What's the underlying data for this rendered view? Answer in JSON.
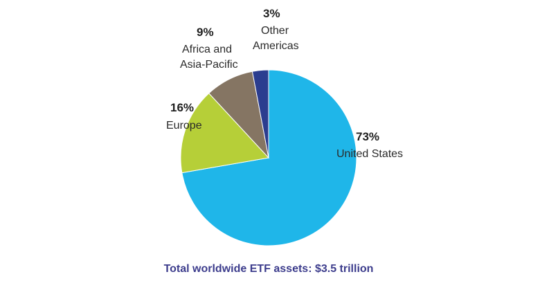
{
  "chart_data": {
    "type": "pie",
    "slices": [
      {
        "label": "United States",
        "label_lines": [
          "United States"
        ],
        "value": 73,
        "value_text": "73%",
        "color": "#1fb6e9"
      },
      {
        "label": "Europe",
        "label_lines": [
          "Europe"
        ],
        "value": 16,
        "value_text": "16%",
        "color": "#b6cf38"
      },
      {
        "label": "Africa and Asia-Pacific",
        "label_lines": [
          "Africa and",
          "Asia-Pacific"
        ],
        "value": 9,
        "value_text": "9%",
        "color": "#857563"
      },
      {
        "label": "Other Americas",
        "label_lines": [
          "Other",
          "Americas"
        ],
        "value": 3,
        "value_text": "3%",
        "color": "#2b3d8f"
      }
    ],
    "caption": "Total worldwide ETF assets: $3.5 trillion"
  }
}
